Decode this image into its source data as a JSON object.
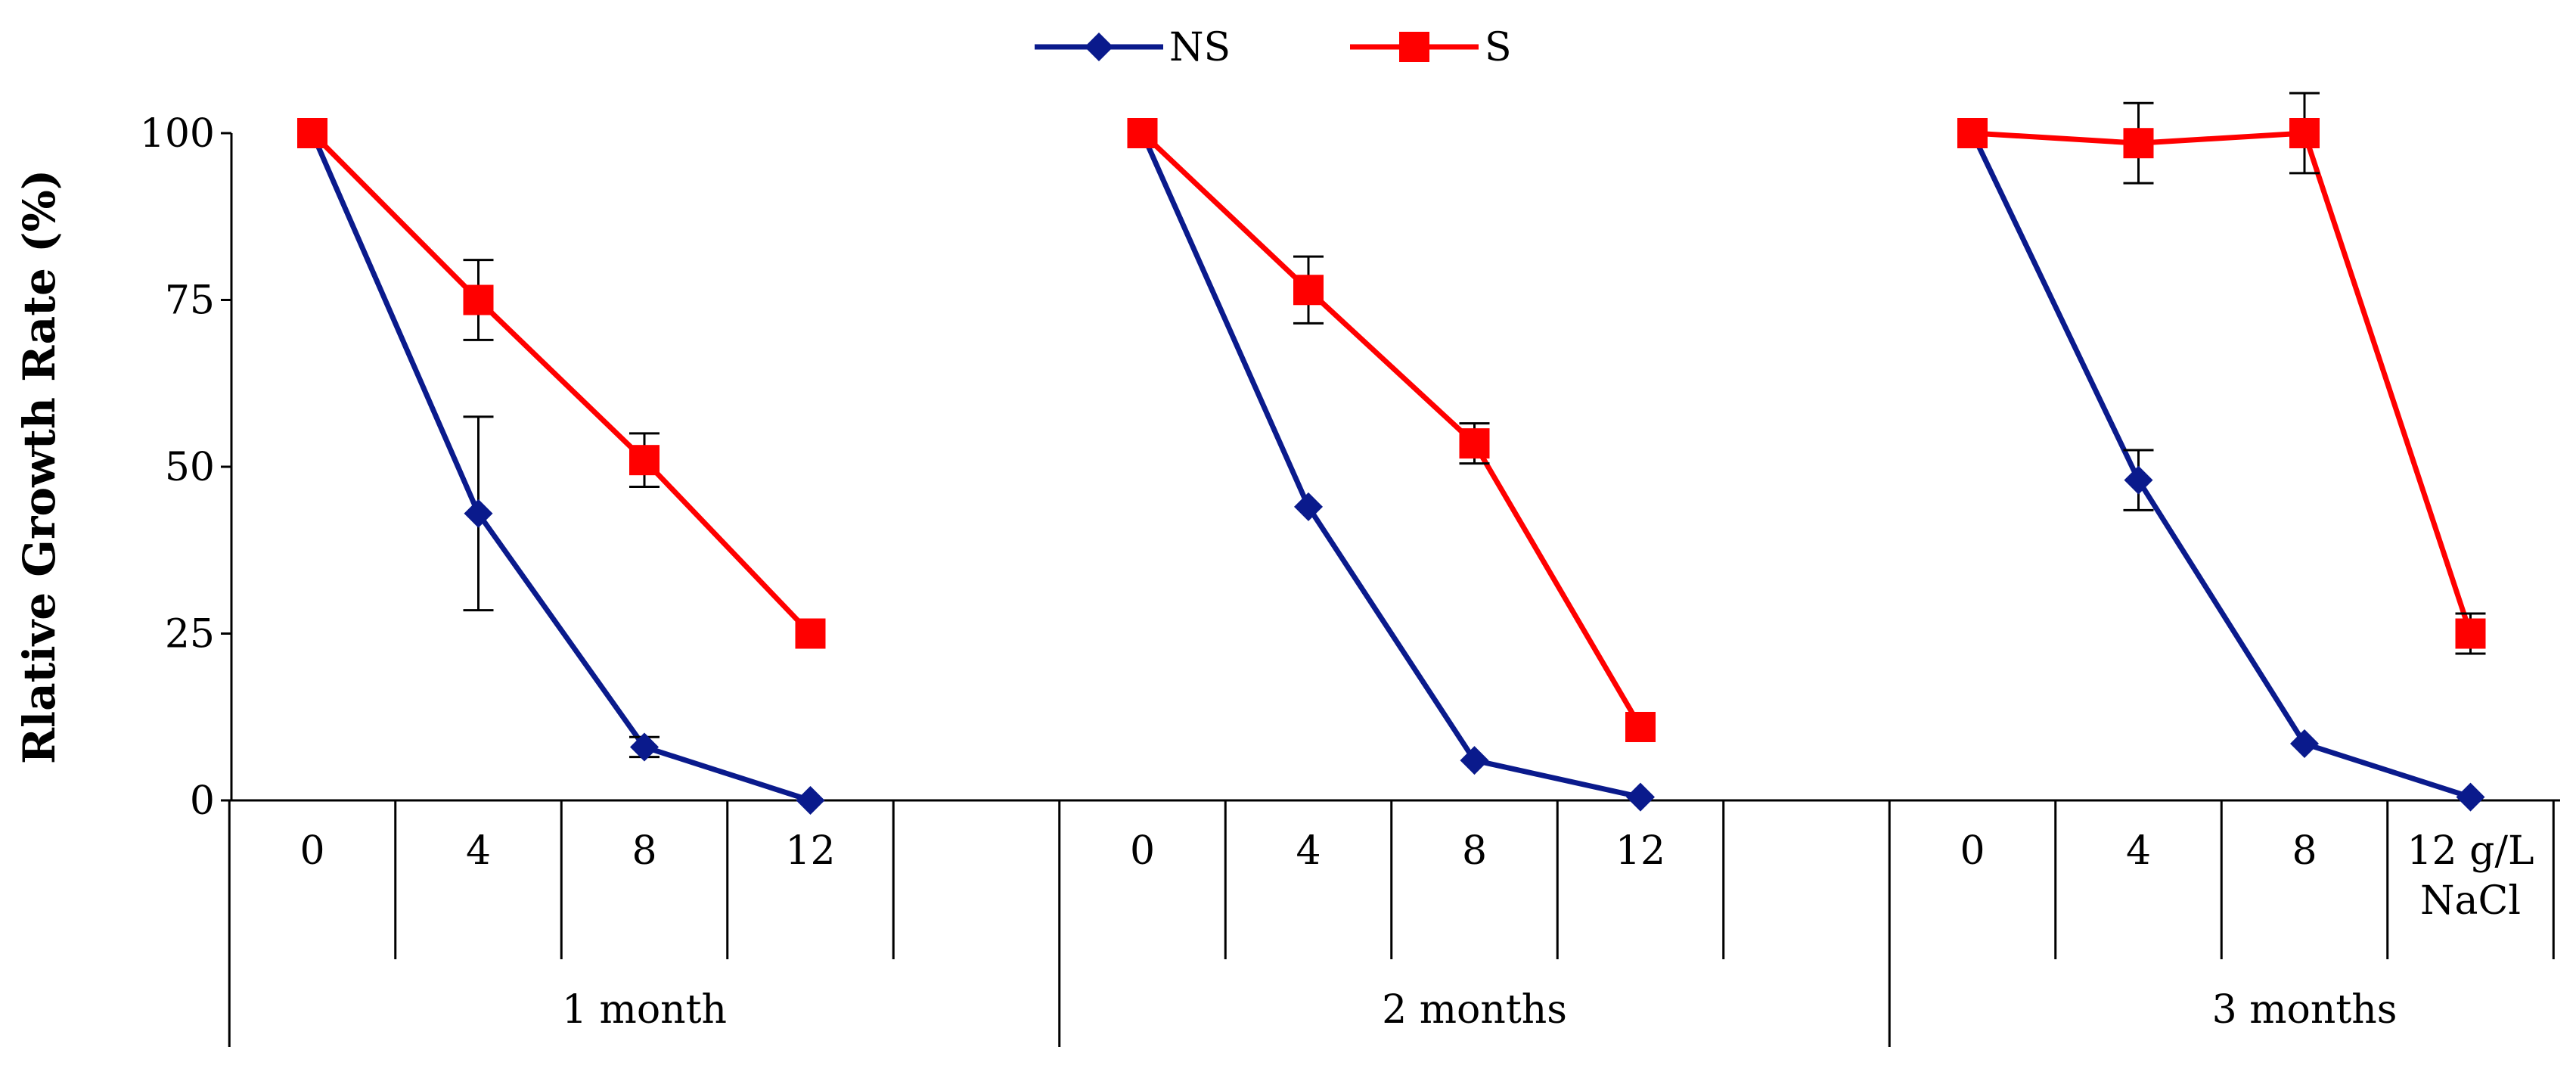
{
  "chart_data": {
    "type": "line",
    "title": "",
    "ylabel": "Rlative Growth Rate (%)",
    "xlabel": "",
    "ylim": [
      0,
      100
    ],
    "yticks": [
      0,
      25,
      50,
      75,
      100
    ],
    "grid": false,
    "legend_position": "top-center",
    "groups": [
      {
        "label": "1 month",
        "categories": [
          "0",
          "4",
          "8",
          "12"
        ]
      },
      {
        "label": "2 months",
        "categories": [
          "0",
          "4",
          "8",
          "12"
        ]
      },
      {
        "label": "3 months",
        "categories": [
          "0",
          "4",
          "8",
          "12 g/L NaCl"
        ]
      }
    ],
    "last_category_lines": [
      "12 g/L",
      "NaCl"
    ],
    "series": [
      {
        "name": "NS",
        "color": "#0a1a8c",
        "marker": "diamond",
        "groups": [
          {
            "values": [
              100,
              43,
              8,
              0
            ],
            "errors": [
              0,
              14.5,
              1.5,
              0
            ]
          },
          {
            "values": [
              100,
              44,
              6,
              0.5
            ],
            "errors": [
              0,
              0,
              0,
              0
            ]
          },
          {
            "values": [
              100,
              48,
              8.5,
              0.5
            ],
            "errors": [
              0,
              4.5,
              0,
              0
            ]
          }
        ]
      },
      {
        "name": "S",
        "color": "#ff0000",
        "marker": "square",
        "groups": [
          {
            "values": [
              100,
              75,
              51,
              25
            ],
            "errors": [
              0,
              6,
              4,
              0
            ]
          },
          {
            "values": [
              100,
              76.5,
              53.5,
              11
            ],
            "errors": [
              0,
              5,
              3,
              0
            ]
          },
          {
            "values": [
              100,
              98.5,
              100,
              25
            ],
            "errors": [
              0,
              6,
              6,
              3
            ]
          }
        ]
      }
    ]
  }
}
